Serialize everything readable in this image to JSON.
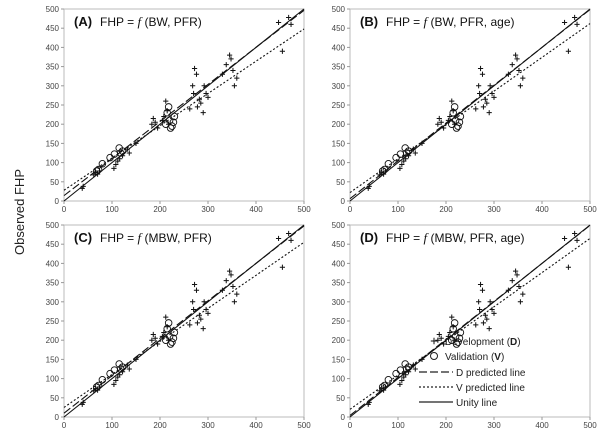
{
  "y_axis_label": "Observed FHP",
  "chart_data": [
    {
      "type": "scatter",
      "panel_label": "(A)",
      "formula_prefix": "FHP = ",
      "formula_f": "f",
      "formula_args": " (BW, PFR)",
      "xlim": [
        0,
        500
      ],
      "ylim": [
        0,
        500
      ],
      "xticks": [
        0,
        100,
        200,
        300,
        400,
        500
      ],
      "yticks": [
        0,
        50,
        100,
        150,
        200,
        250,
        300,
        350,
        400,
        450,
        500
      ],
      "development": [
        [
          38,
          33
        ],
        [
          40,
          38
        ],
        [
          62,
          68
        ],
        [
          66,
          74
        ],
        [
          70,
          70
        ],
        [
          74,
          78
        ],
        [
          104,
          85
        ],
        [
          108,
          95
        ],
        [
          112,
          104
        ],
        [
          116,
          110
        ],
        [
          122,
          118
        ],
        [
          132,
          135
        ],
        [
          136,
          125
        ],
        [
          150,
          150
        ],
        [
          183,
          200
        ],
        [
          186,
          215
        ],
        [
          190,
          205
        ],
        [
          195,
          190
        ],
        [
          205,
          210
        ],
        [
          208,
          220
        ],
        [
          212,
          260
        ],
        [
          215,
          235
        ],
        [
          218,
          200
        ],
        [
          262,
          240
        ],
        [
          268,
          300
        ],
        [
          270,
          280
        ],
        [
          272,
          345
        ],
        [
          276,
          330
        ],
        [
          278,
          245
        ],
        [
          282,
          265
        ],
        [
          285,
          255
        ],
        [
          290,
          230
        ],
        [
          292,
          300
        ],
        [
          296,
          280
        ],
        [
          300,
          270
        ],
        [
          330,
          330
        ],
        [
          338,
          355
        ],
        [
          345,
          380
        ],
        [
          348,
          370
        ],
        [
          352,
          340
        ],
        [
          355,
          300
        ],
        [
          360,
          320
        ],
        [
          447,
          465
        ],
        [
          455,
          390
        ],
        [
          468,
          478
        ],
        [
          473,
          460
        ]
      ],
      "validation": [
        [
          68,
          78
        ],
        [
          72,
          82
        ],
        [
          80,
          97
        ],
        [
          96,
          113
        ],
        [
          105,
          122
        ],
        [
          115,
          138
        ],
        [
          118,
          125
        ],
        [
          122,
          130
        ],
        [
          212,
          200
        ],
        [
          215,
          230
        ],
        [
          218,
          245
        ],
        [
          220,
          210
        ],
        [
          222,
          190
        ],
        [
          225,
          195
        ],
        [
          228,
          205
        ],
        [
          230,
          220
        ]
      ],
      "lines": {
        "unity": [
          1,
          0
        ],
        "d_predicted": [
          0.965,
          14
        ],
        "v_predicted": [
          0.84,
          28
        ]
      }
    },
    {
      "type": "scatter",
      "panel_label": "(B)",
      "formula_prefix": "FHP = ",
      "formula_f": "f",
      "formula_args": " (BW, PFR, age)",
      "xlim": [
        0,
        500
      ],
      "ylim": [
        0,
        500
      ],
      "xticks": [
        0,
        100,
        200,
        300,
        400,
        500
      ],
      "yticks": [
        0,
        50,
        100,
        150,
        200,
        250,
        300,
        350,
        400,
        450,
        500
      ],
      "development": [
        [
          38,
          33
        ],
        [
          40,
          38
        ],
        [
          62,
          68
        ],
        [
          66,
          74
        ],
        [
          70,
          70
        ],
        [
          74,
          78
        ],
        [
          104,
          85
        ],
        [
          108,
          95
        ],
        [
          112,
          104
        ],
        [
          116,
          110
        ],
        [
          122,
          118
        ],
        [
          132,
          135
        ],
        [
          136,
          125
        ],
        [
          150,
          150
        ],
        [
          183,
          200
        ],
        [
          186,
          215
        ],
        [
          190,
          205
        ],
        [
          195,
          190
        ],
        [
          205,
          210
        ],
        [
          208,
          220
        ],
        [
          212,
          260
        ],
        [
          215,
          235
        ],
        [
          218,
          200
        ],
        [
          262,
          240
        ],
        [
          268,
          300
        ],
        [
          270,
          280
        ],
        [
          272,
          345
        ],
        [
          276,
          330
        ],
        [
          278,
          245
        ],
        [
          282,
          265
        ],
        [
          285,
          255
        ],
        [
          290,
          230
        ],
        [
          292,
          300
        ],
        [
          296,
          280
        ],
        [
          300,
          270
        ],
        [
          330,
          330
        ],
        [
          338,
          355
        ],
        [
          345,
          380
        ],
        [
          348,
          370
        ],
        [
          352,
          340
        ],
        [
          355,
          300
        ],
        [
          360,
          320
        ],
        [
          447,
          465
        ],
        [
          455,
          390
        ],
        [
          468,
          478
        ],
        [
          473,
          460
        ]
      ],
      "validation": [
        [
          68,
          78
        ],
        [
          72,
          82
        ],
        [
          80,
          97
        ],
        [
          96,
          113
        ],
        [
          105,
          122
        ],
        [
          115,
          138
        ],
        [
          118,
          125
        ],
        [
          122,
          130
        ],
        [
          212,
          200
        ],
        [
          215,
          230
        ],
        [
          218,
          245
        ],
        [
          220,
          210
        ],
        [
          222,
          190
        ],
        [
          225,
          195
        ],
        [
          228,
          205
        ],
        [
          230,
          220
        ]
      ],
      "lines": {
        "unity": [
          1,
          0
        ],
        "d_predicted": [
          0.985,
          6
        ],
        "v_predicted": [
          0.88,
          22
        ]
      }
    },
    {
      "type": "scatter",
      "panel_label": "(C)",
      "formula_prefix": "FHP = ",
      "formula_f": "f",
      "formula_args": " (MBW, PFR)",
      "xlim": [
        0,
        500
      ],
      "ylim": [
        0,
        500
      ],
      "xticks": [
        0,
        100,
        200,
        300,
        400,
        500
      ],
      "yticks": [
        0,
        50,
        100,
        150,
        200,
        250,
        300,
        350,
        400,
        450,
        500
      ],
      "development": [
        [
          38,
          33
        ],
        [
          40,
          38
        ],
        [
          62,
          68
        ],
        [
          66,
          74
        ],
        [
          70,
          70
        ],
        [
          74,
          78
        ],
        [
          104,
          85
        ],
        [
          108,
          95
        ],
        [
          112,
          104
        ],
        [
          116,
          110
        ],
        [
          122,
          118
        ],
        [
          132,
          135
        ],
        [
          136,
          125
        ],
        [
          150,
          150
        ],
        [
          183,
          200
        ],
        [
          186,
          215
        ],
        [
          190,
          205
        ],
        [
          195,
          190
        ],
        [
          205,
          210
        ],
        [
          208,
          220
        ],
        [
          212,
          260
        ],
        [
          215,
          235
        ],
        [
          218,
          200
        ],
        [
          262,
          240
        ],
        [
          268,
          300
        ],
        [
          270,
          280
        ],
        [
          272,
          345
        ],
        [
          276,
          330
        ],
        [
          278,
          245
        ],
        [
          282,
          265
        ],
        [
          285,
          255
        ],
        [
          290,
          230
        ],
        [
          292,
          300
        ],
        [
          296,
          280
        ],
        [
          300,
          270
        ],
        [
          330,
          330
        ],
        [
          338,
          355
        ],
        [
          345,
          380
        ],
        [
          348,
          370
        ],
        [
          352,
          340
        ],
        [
          355,
          300
        ],
        [
          360,
          320
        ],
        [
          447,
          465
        ],
        [
          455,
          390
        ],
        [
          468,
          478
        ],
        [
          473,
          460
        ]
      ],
      "validation": [
        [
          68,
          78
        ],
        [
          72,
          82
        ],
        [
          80,
          97
        ],
        [
          96,
          113
        ],
        [
          105,
          122
        ],
        [
          115,
          138
        ],
        [
          118,
          125
        ],
        [
          122,
          130
        ],
        [
          212,
          200
        ],
        [
          215,
          230
        ],
        [
          218,
          245
        ],
        [
          220,
          210
        ],
        [
          222,
          190
        ],
        [
          225,
          195
        ],
        [
          228,
          205
        ],
        [
          230,
          220
        ]
      ],
      "lines": {
        "unity": [
          1,
          0
        ],
        "d_predicted": [
          0.975,
          10
        ],
        "v_predicted": [
          0.86,
          25
        ]
      }
    },
    {
      "type": "scatter",
      "panel_label": "(D)",
      "formula_prefix": "FHP = ",
      "formula_f": "f",
      "formula_args": " (MBW, PFR, age)",
      "xlim": [
        0,
        500
      ],
      "ylim": [
        0,
        500
      ],
      "xticks": [
        0,
        100,
        200,
        300,
        400,
        500
      ],
      "yticks": [
        0,
        50,
        100,
        150,
        200,
        250,
        300,
        350,
        400,
        450,
        500
      ],
      "development": [
        [
          38,
          33
        ],
        [
          40,
          38
        ],
        [
          62,
          68
        ],
        [
          66,
          74
        ],
        [
          70,
          70
        ],
        [
          74,
          78
        ],
        [
          104,
          85
        ],
        [
          108,
          95
        ],
        [
          112,
          104
        ],
        [
          116,
          110
        ],
        [
          122,
          118
        ],
        [
          132,
          135
        ],
        [
          136,
          125
        ],
        [
          150,
          150
        ],
        [
          183,
          200
        ],
        [
          186,
          215
        ],
        [
          190,
          205
        ],
        [
          195,
          190
        ],
        [
          205,
          210
        ],
        [
          208,
          220
        ],
        [
          212,
          260
        ],
        [
          215,
          235
        ],
        [
          218,
          200
        ],
        [
          262,
          240
        ],
        [
          268,
          300
        ],
        [
          270,
          280
        ],
        [
          272,
          345
        ],
        [
          276,
          330
        ],
        [
          278,
          245
        ],
        [
          282,
          265
        ],
        [
          285,
          255
        ],
        [
          290,
          230
        ],
        [
          292,
          300
        ],
        [
          296,
          280
        ],
        [
          300,
          270
        ],
        [
          330,
          330
        ],
        [
          338,
          355
        ],
        [
          345,
          380
        ],
        [
          348,
          370
        ],
        [
          352,
          340
        ],
        [
          355,
          300
        ],
        [
          360,
          320
        ],
        [
          447,
          465
        ],
        [
          455,
          390
        ],
        [
          468,
          478
        ],
        [
          473,
          460
        ]
      ],
      "validation": [
        [
          68,
          78
        ],
        [
          72,
          82
        ],
        [
          80,
          97
        ],
        [
          96,
          113
        ],
        [
          105,
          122
        ],
        [
          115,
          138
        ],
        [
          118,
          125
        ],
        [
          122,
          130
        ],
        [
          212,
          200
        ],
        [
          215,
          230
        ],
        [
          218,
          245
        ],
        [
          220,
          210
        ],
        [
          222,
          190
        ],
        [
          225,
          195
        ],
        [
          228,
          205
        ],
        [
          230,
          220
        ]
      ],
      "lines": {
        "unity": [
          1,
          0
        ],
        "d_predicted": [
          0.99,
          4
        ],
        "v_predicted": [
          0.89,
          20
        ]
      }
    }
  ],
  "legend": {
    "placement": "bottom-right of panel D",
    "development_text": "Development (",
    "development_bold": "D",
    "validation_text": "Validation (",
    "validation_bold": "V",
    "d_line": "D predicted line",
    "v_line": "V predicted line",
    "unity_line": "Unity line",
    "close_paren": ")"
  }
}
